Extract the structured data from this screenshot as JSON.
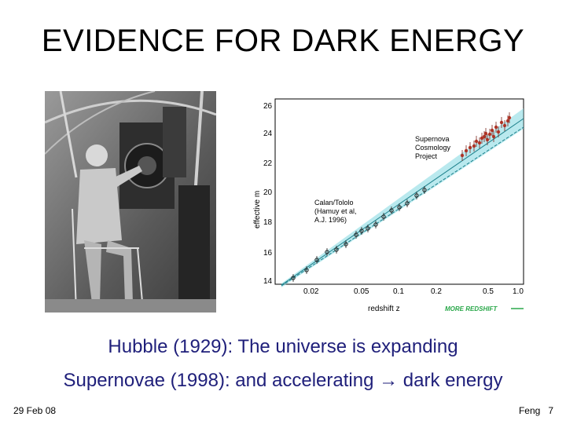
{
  "title": "EVIDENCE FOR DARK ENERGY",
  "captions": {
    "line1": "Hubble (1929): The universe is expanding",
    "line2_a": "Supernovae (1998): and accelerating",
    "line2_arrow": "→",
    "line2_b": "dark energy"
  },
  "footer": {
    "date": "29 Feb 08",
    "author": "Feng",
    "page": "7"
  },
  "plot": {
    "y_ticks": [
      "26",
      "24",
      "22",
      "20",
      "18",
      "16",
      "14"
    ],
    "x_ticks": [
      "0.02",
      "0.05",
      "0.1",
      "0.2",
      "0.5",
      "1.0"
    ],
    "y_label": "effective m",
    "x_label": "redshift z",
    "label_scp": [
      "Supernova",
      "Cosmology",
      "Project"
    ],
    "label_ct": [
      "Calan/Tololo",
      "(Hamuy et al,",
      "A.J. 1996)"
    ],
    "more_redshift": "MORE REDSHIFT"
  },
  "photo": {
    "subject": "Hubble at telescope"
  }
}
